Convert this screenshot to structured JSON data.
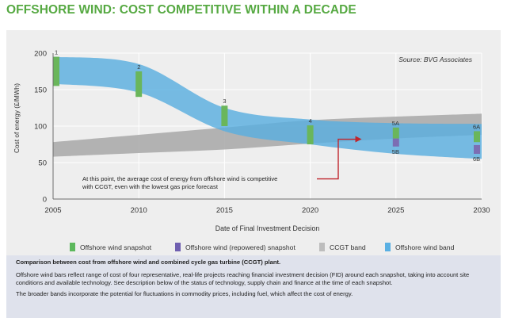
{
  "page": {
    "title": "OFFSHORE WIND: COST COMPETITIVE WITHIN A DECADE",
    "colors": {
      "title": "#56a942",
      "panel_background": "#eeeeee",
      "info_background": "#dfe2ec",
      "offshore_band": "#5aafdf",
      "ccgt_band": "#a7a7a7",
      "snapshot_green": "#6ab65b",
      "snapshot_repowered": "#7c6eb3",
      "arrow": "#c0262d"
    }
  },
  "chart_data": {
    "type": "area",
    "source": "Source: BVG Associates",
    "xlabel": "Date of Final Investment Decision",
    "ylabel": "Cost of energy (£/MWh)",
    "xlim": [
      2005,
      2030
    ],
    "ylim": [
      0,
      200
    ],
    "x_ticks": [
      2005,
      2010,
      2015,
      2020,
      2025,
      2030
    ],
    "y_ticks": [
      0,
      50,
      100,
      150,
      200
    ],
    "grid": true,
    "legend": "bottom",
    "series": [
      {
        "name": "CCGT band",
        "x": [
          2005,
          2010,
          2015,
          2020,
          2025,
          2030
        ],
        "upper": [
          78,
          88,
          98,
          108,
          113,
          117
        ],
        "lower": [
          58,
          63,
          68,
          76,
          83,
          88
        ]
      },
      {
        "name": "Offshore wind band",
        "x": [
          2005,
          2010,
          2015,
          2020,
          2025,
          2030
        ],
        "upper": [
          195,
          185,
          125,
          109,
          104,
          103
        ],
        "lower": [
          158,
          146,
          93,
          75,
          62,
          55
        ]
      }
    ],
    "snapshots": [
      {
        "label": "1",
        "kind": "Offshore wind snapshot",
        "x": 2005,
        "low": 155,
        "high": 195
      },
      {
        "label": "2",
        "kind": "Offshore wind snapshot",
        "x": 2010,
        "low": 140,
        "high": 175
      },
      {
        "label": "3",
        "kind": "Offshore wind snapshot",
        "x": 2015,
        "low": 100,
        "high": 128
      },
      {
        "label": "4",
        "kind": "Offshore wind snapshot",
        "x": 2020,
        "low": 75,
        "high": 101
      },
      {
        "label": "5A",
        "kind": "Offshore wind snapshot",
        "x": 2025,
        "low": 83,
        "high": 98
      },
      {
        "label": "5B",
        "kind": "Offshore wind (repowered) snapshot",
        "x": 2025,
        "low": 72,
        "high": 83
      },
      {
        "label": "6A",
        "kind": "Offshore wind snapshot",
        "x": 2030,
        "low": 78,
        "high": 93
      },
      {
        "label": "6B",
        "kind": "Offshore wind (repowered) snapshot",
        "x": 2030,
        "low": 62,
        "high": 74
      }
    ],
    "annotation": {
      "lines": [
        "At this point, the average cost of energy from offshore wind is competitive",
        "with CCGT, even with the lowest gas price forecast"
      ],
      "arrow_target": {
        "x": 2023,
        "y": 82
      }
    }
  },
  "legend": {
    "items": [
      {
        "label": "Offshore wind snapshot",
        "color": "#5cb85c"
      },
      {
        "label": "Offshore wind (repowered) snapshot",
        "color": "#6f5fb0"
      },
      {
        "label": "CCGT band",
        "color": "#bdbdbd"
      },
      {
        "label": "Offshore wind band",
        "color": "#5ab0e3"
      }
    ]
  },
  "info": {
    "heading": "Comparison between cost from offshore wind and combined cycle gas turbine (CCGT) plant.",
    "para1": "Offshore wind bars reflect range of cost of four representative, real-life projects reaching financial investment decision (FID) around each snapshot, taking into account site conditions and available technology. See description below of the status of technology, supply chain and finance at the time of each snapshot.",
    "para2": "The broader bands incorporate the potential for fluctuations in commodity prices, including fuel, which affect the cost of energy."
  }
}
